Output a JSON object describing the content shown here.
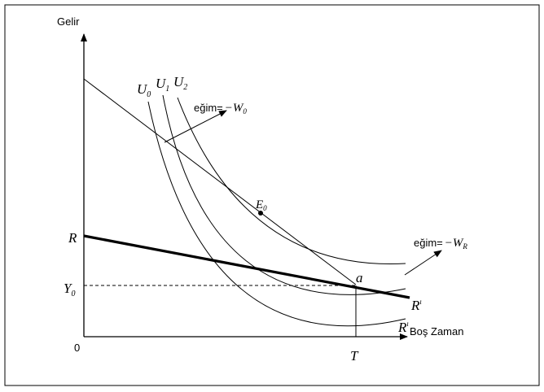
{
  "axes": {
    "y_label": "Gelir",
    "x_label": "Boş Zaman",
    "origin": "0"
  },
  "labels": {
    "U": "U",
    "U0_sub": "0",
    "U1_sub": "1",
    "U2_sub": "2",
    "slope_text": "eğim=",
    "minus": "−",
    "W": "W",
    "W0_sub": "0",
    "WR_sub": "R",
    "E": "E",
    "E_sub": "0",
    "R": "R",
    "Y": "Y",
    "Y_sub": "0",
    "a": "a",
    "T": "T",
    "R_prime_1": "R",
    "prime_1": "ı",
    "R_prime_2": "R",
    "prime_2": "ı"
  },
  "colors": {
    "line": "#000000",
    "background": "#ffffff"
  }
}
